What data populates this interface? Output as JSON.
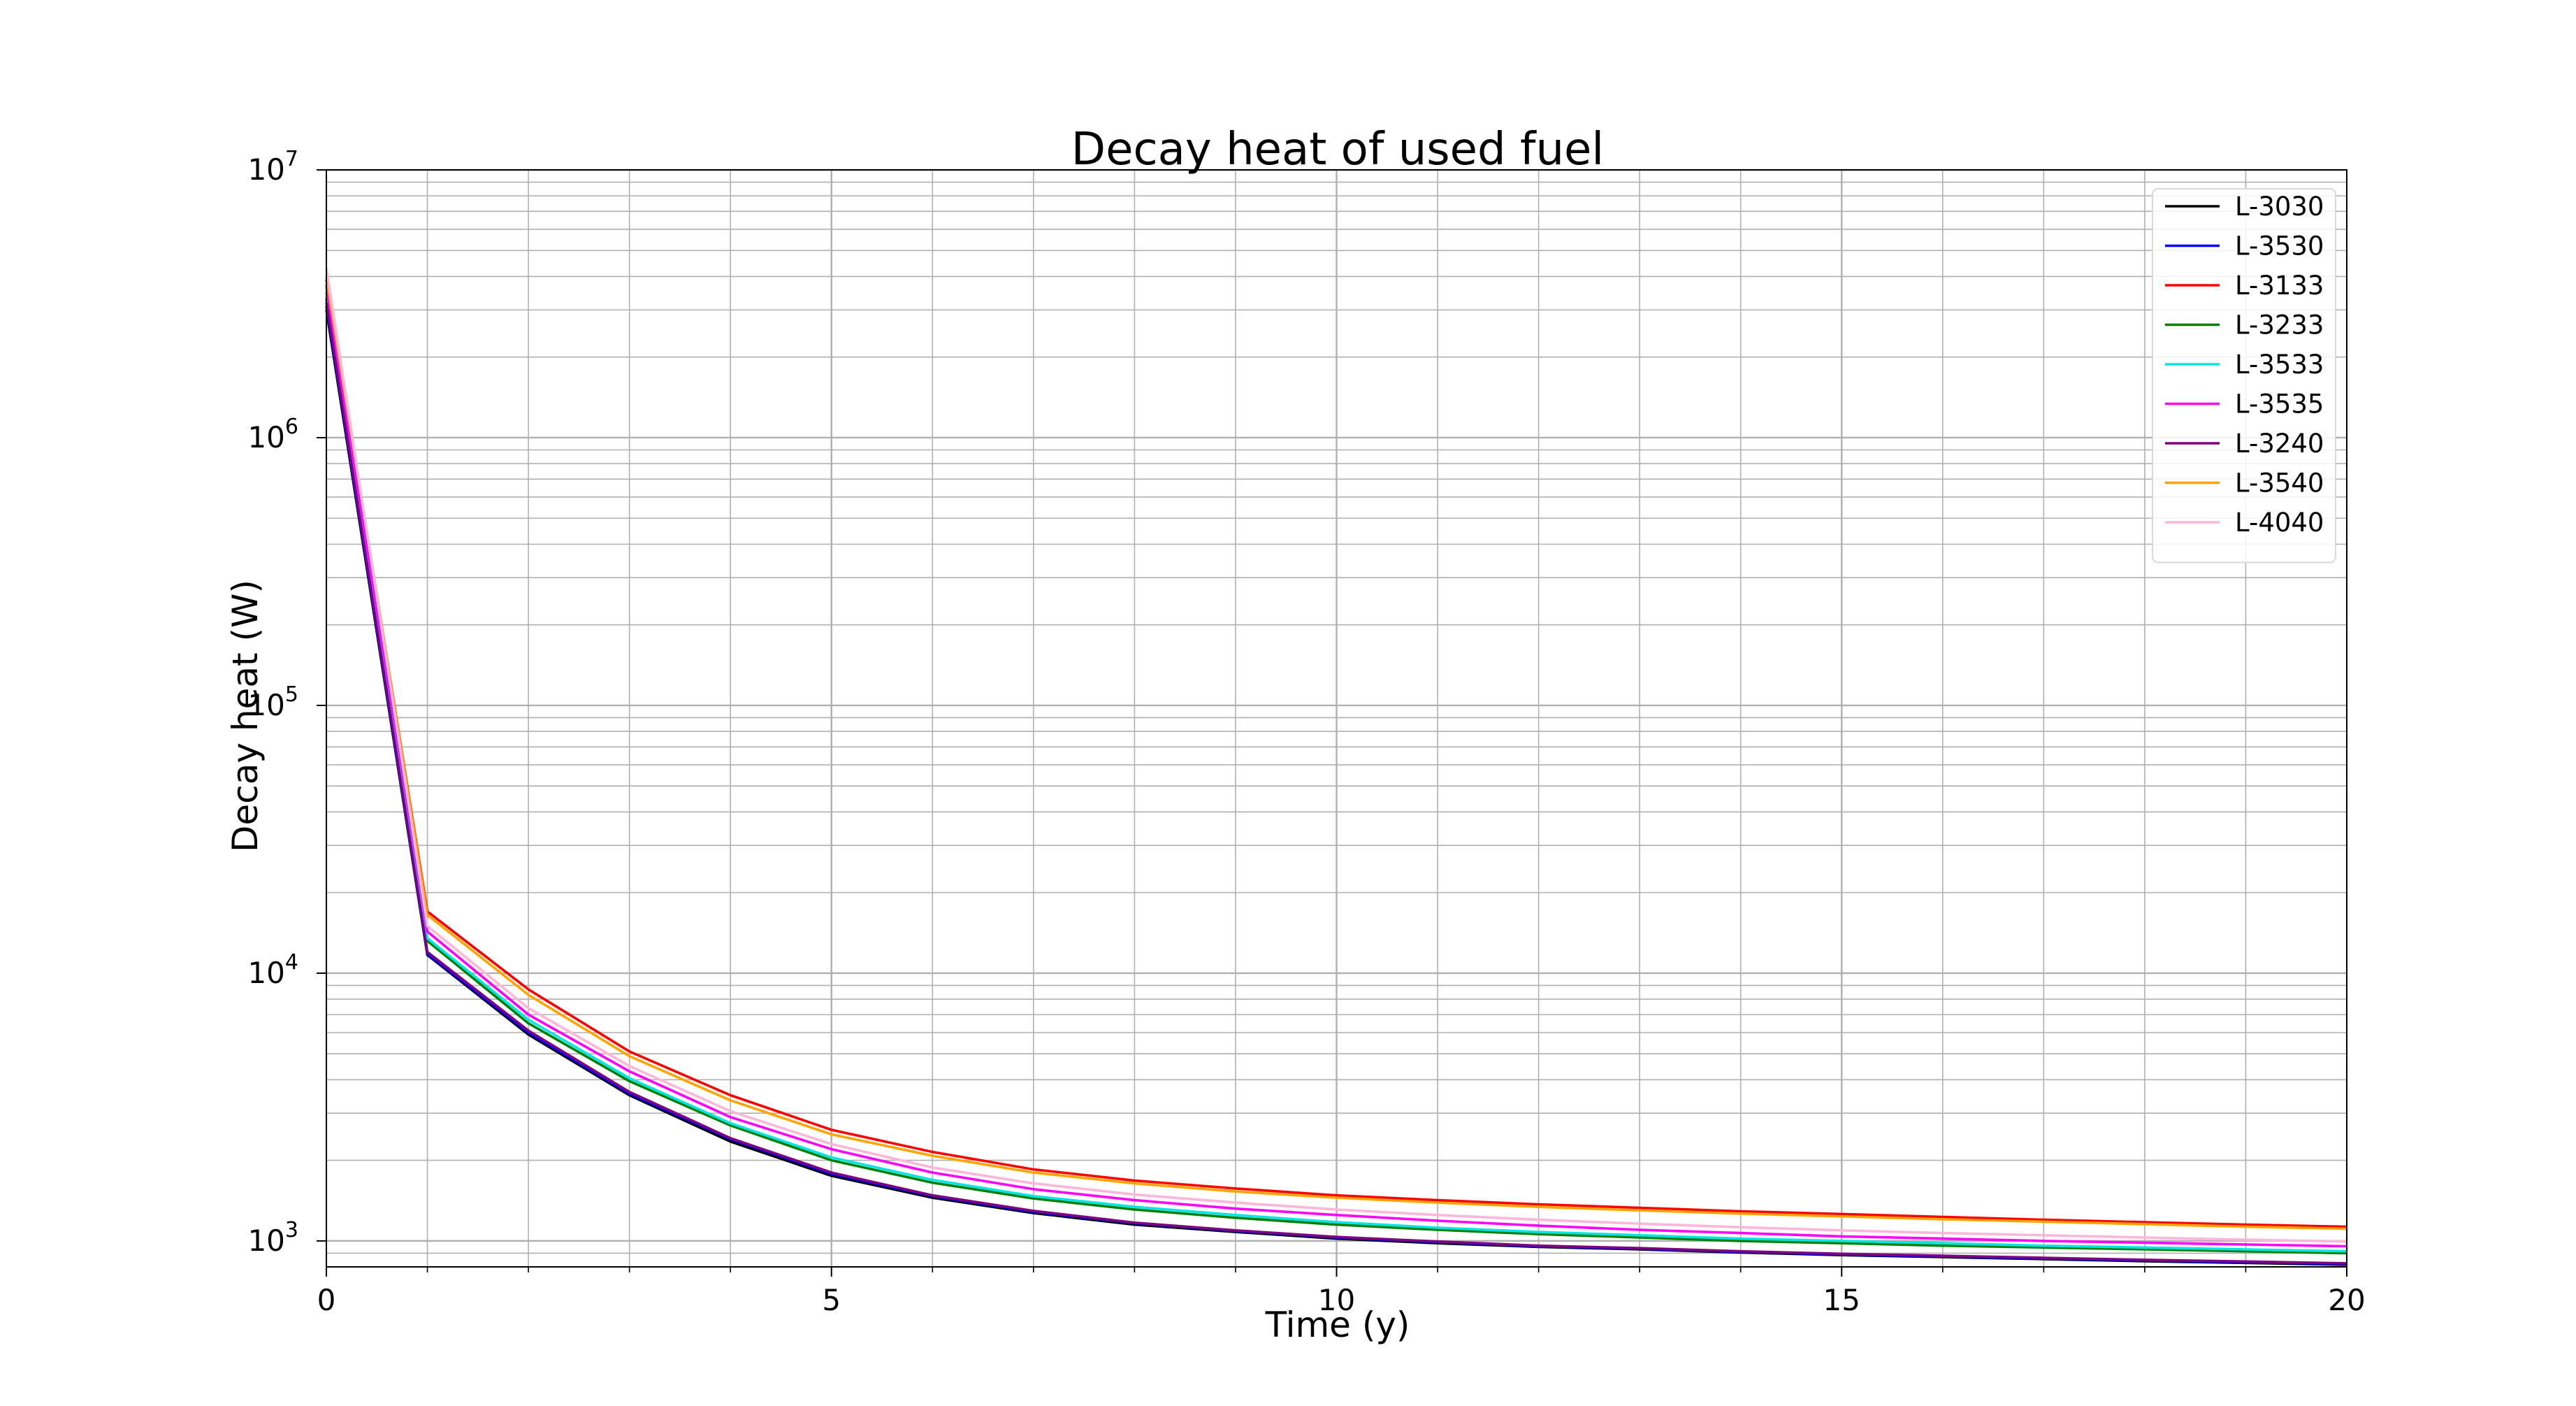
{
  "chart_data": {
    "type": "line",
    "title": "Decay heat of used fuel",
    "xlabel": "Time (y)",
    "ylabel": "Decay heat (W)",
    "xlim": [
      0,
      20
    ],
    "ylim": [
      800,
      10000000
    ],
    "yscale": "log",
    "grid": true,
    "legend_position": "top-right",
    "x_ticks": [
      0,
      5,
      10,
      15,
      20
    ],
    "y_ticks": [
      {
        "value": 1000,
        "base": "10",
        "exp": "3"
      },
      {
        "value": 10000,
        "base": "10",
        "exp": "4"
      },
      {
        "value": 100000,
        "base": "10",
        "exp": "5"
      },
      {
        "value": 1000000,
        "base": "10",
        "exp": "6"
      },
      {
        "value": 10000000,
        "base": "10",
        "exp": "7"
      }
    ],
    "x": [
      0,
      1,
      2,
      3,
      4,
      5,
      6,
      7,
      8,
      9,
      10,
      11,
      12,
      13,
      14,
      15,
      16,
      17,
      18,
      19,
      20
    ],
    "series": [
      {
        "name": "L-3030",
        "color": "#000000",
        "values": [
          3000000,
          11700,
          5900,
          3500,
          2350,
          1750,
          1450,
          1270,
          1150,
          1080,
          1020,
          980,
          950,
          930,
          905,
          885,
          870,
          855,
          840,
          828,
          815
        ]
      },
      {
        "name": "L-3530",
        "color": "#0000ff",
        "values": [
          3100000,
          11800,
          6000,
          3550,
          2400,
          1780,
          1470,
          1285,
          1165,
          1090,
          1030,
          990,
          955,
          935,
          910,
          890,
          875,
          860,
          845,
          832,
          820
        ]
      },
      {
        "name": "L-3133",
        "color": "#ff0000",
        "values": [
          3900000,
          17000,
          8700,
          5100,
          3500,
          2600,
          2150,
          1850,
          1680,
          1570,
          1480,
          1420,
          1370,
          1330,
          1290,
          1260,
          1230,
          1200,
          1175,
          1150,
          1130
        ]
      },
      {
        "name": "L-3233",
        "color": "#008000",
        "values": [
          3300000,
          13200,
          6500,
          3950,
          2700,
          2000,
          1650,
          1440,
          1310,
          1220,
          1150,
          1100,
          1060,
          1030,
          1000,
          980,
          960,
          945,
          930,
          915,
          900
        ]
      },
      {
        "name": "L-3533",
        "color": "#00e5e5",
        "values": [
          3500000,
          13500,
          6700,
          4050,
          2750,
          2050,
          1690,
          1470,
          1340,
          1250,
          1175,
          1120,
          1080,
          1050,
          1020,
          1000,
          980,
          960,
          945,
          930,
          915
        ]
      },
      {
        "name": "L-3535",
        "color": "#ff00ff",
        "values": [
          3700000,
          14300,
          7000,
          4300,
          2900,
          2200,
          1800,
          1560,
          1420,
          1320,
          1250,
          1190,
          1140,
          1100,
          1070,
          1040,
          1020,
          1000,
          985,
          970,
          955
        ]
      },
      {
        "name": "L-3240",
        "color": "#800080",
        "values": [
          3200000,
          12000,
          6100,
          3600,
          2420,
          1800,
          1480,
          1295,
          1170,
          1095,
          1035,
          995,
          960,
          940,
          915,
          895,
          880,
          865,
          850,
          838,
          825
        ]
      },
      {
        "name": "L-3540",
        "color": "#ffa500",
        "values": [
          4000000,
          16500,
          8300,
          4900,
          3350,
          2500,
          2080,
          1800,
          1640,
          1530,
          1450,
          1390,
          1340,
          1300,
          1265,
          1235,
          1205,
          1180,
          1155,
          1130,
          1110
        ]
      },
      {
        "name": "L-4040",
        "color": "#ffb6d9",
        "values": [
          4300000,
          15000,
          7400,
          4500,
          3050,
          2300,
          1880,
          1640,
          1490,
          1390,
          1310,
          1250,
          1200,
          1160,
          1125,
          1095,
          1070,
          1050,
          1030,
          1010,
          995
        ]
      }
    ]
  }
}
